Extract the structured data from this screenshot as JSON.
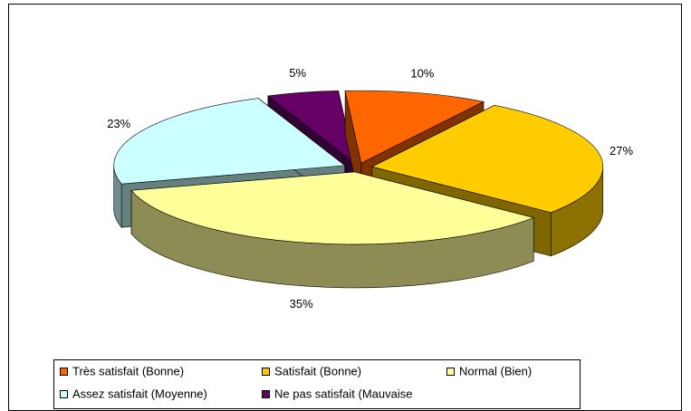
{
  "chart_data": {
    "type": "pie",
    "categories": [
      "Très satisfait (Bonne)",
      "Satisfait (Bonne)",
      "Normal (Bien)",
      "Assez satisfait (Moyenne)",
      "Ne pas satisfait (Mauvaise"
    ],
    "values": [
      10,
      27,
      35,
      23,
      5
    ],
    "value_labels": [
      "10%",
      "27%",
      "35%",
      "23%",
      "5%"
    ],
    "colors": [
      "#ff6600",
      "#ffcc00",
      "#ffff99",
      "#ccffff",
      "#660066"
    ],
    "legend": "bottom"
  }
}
